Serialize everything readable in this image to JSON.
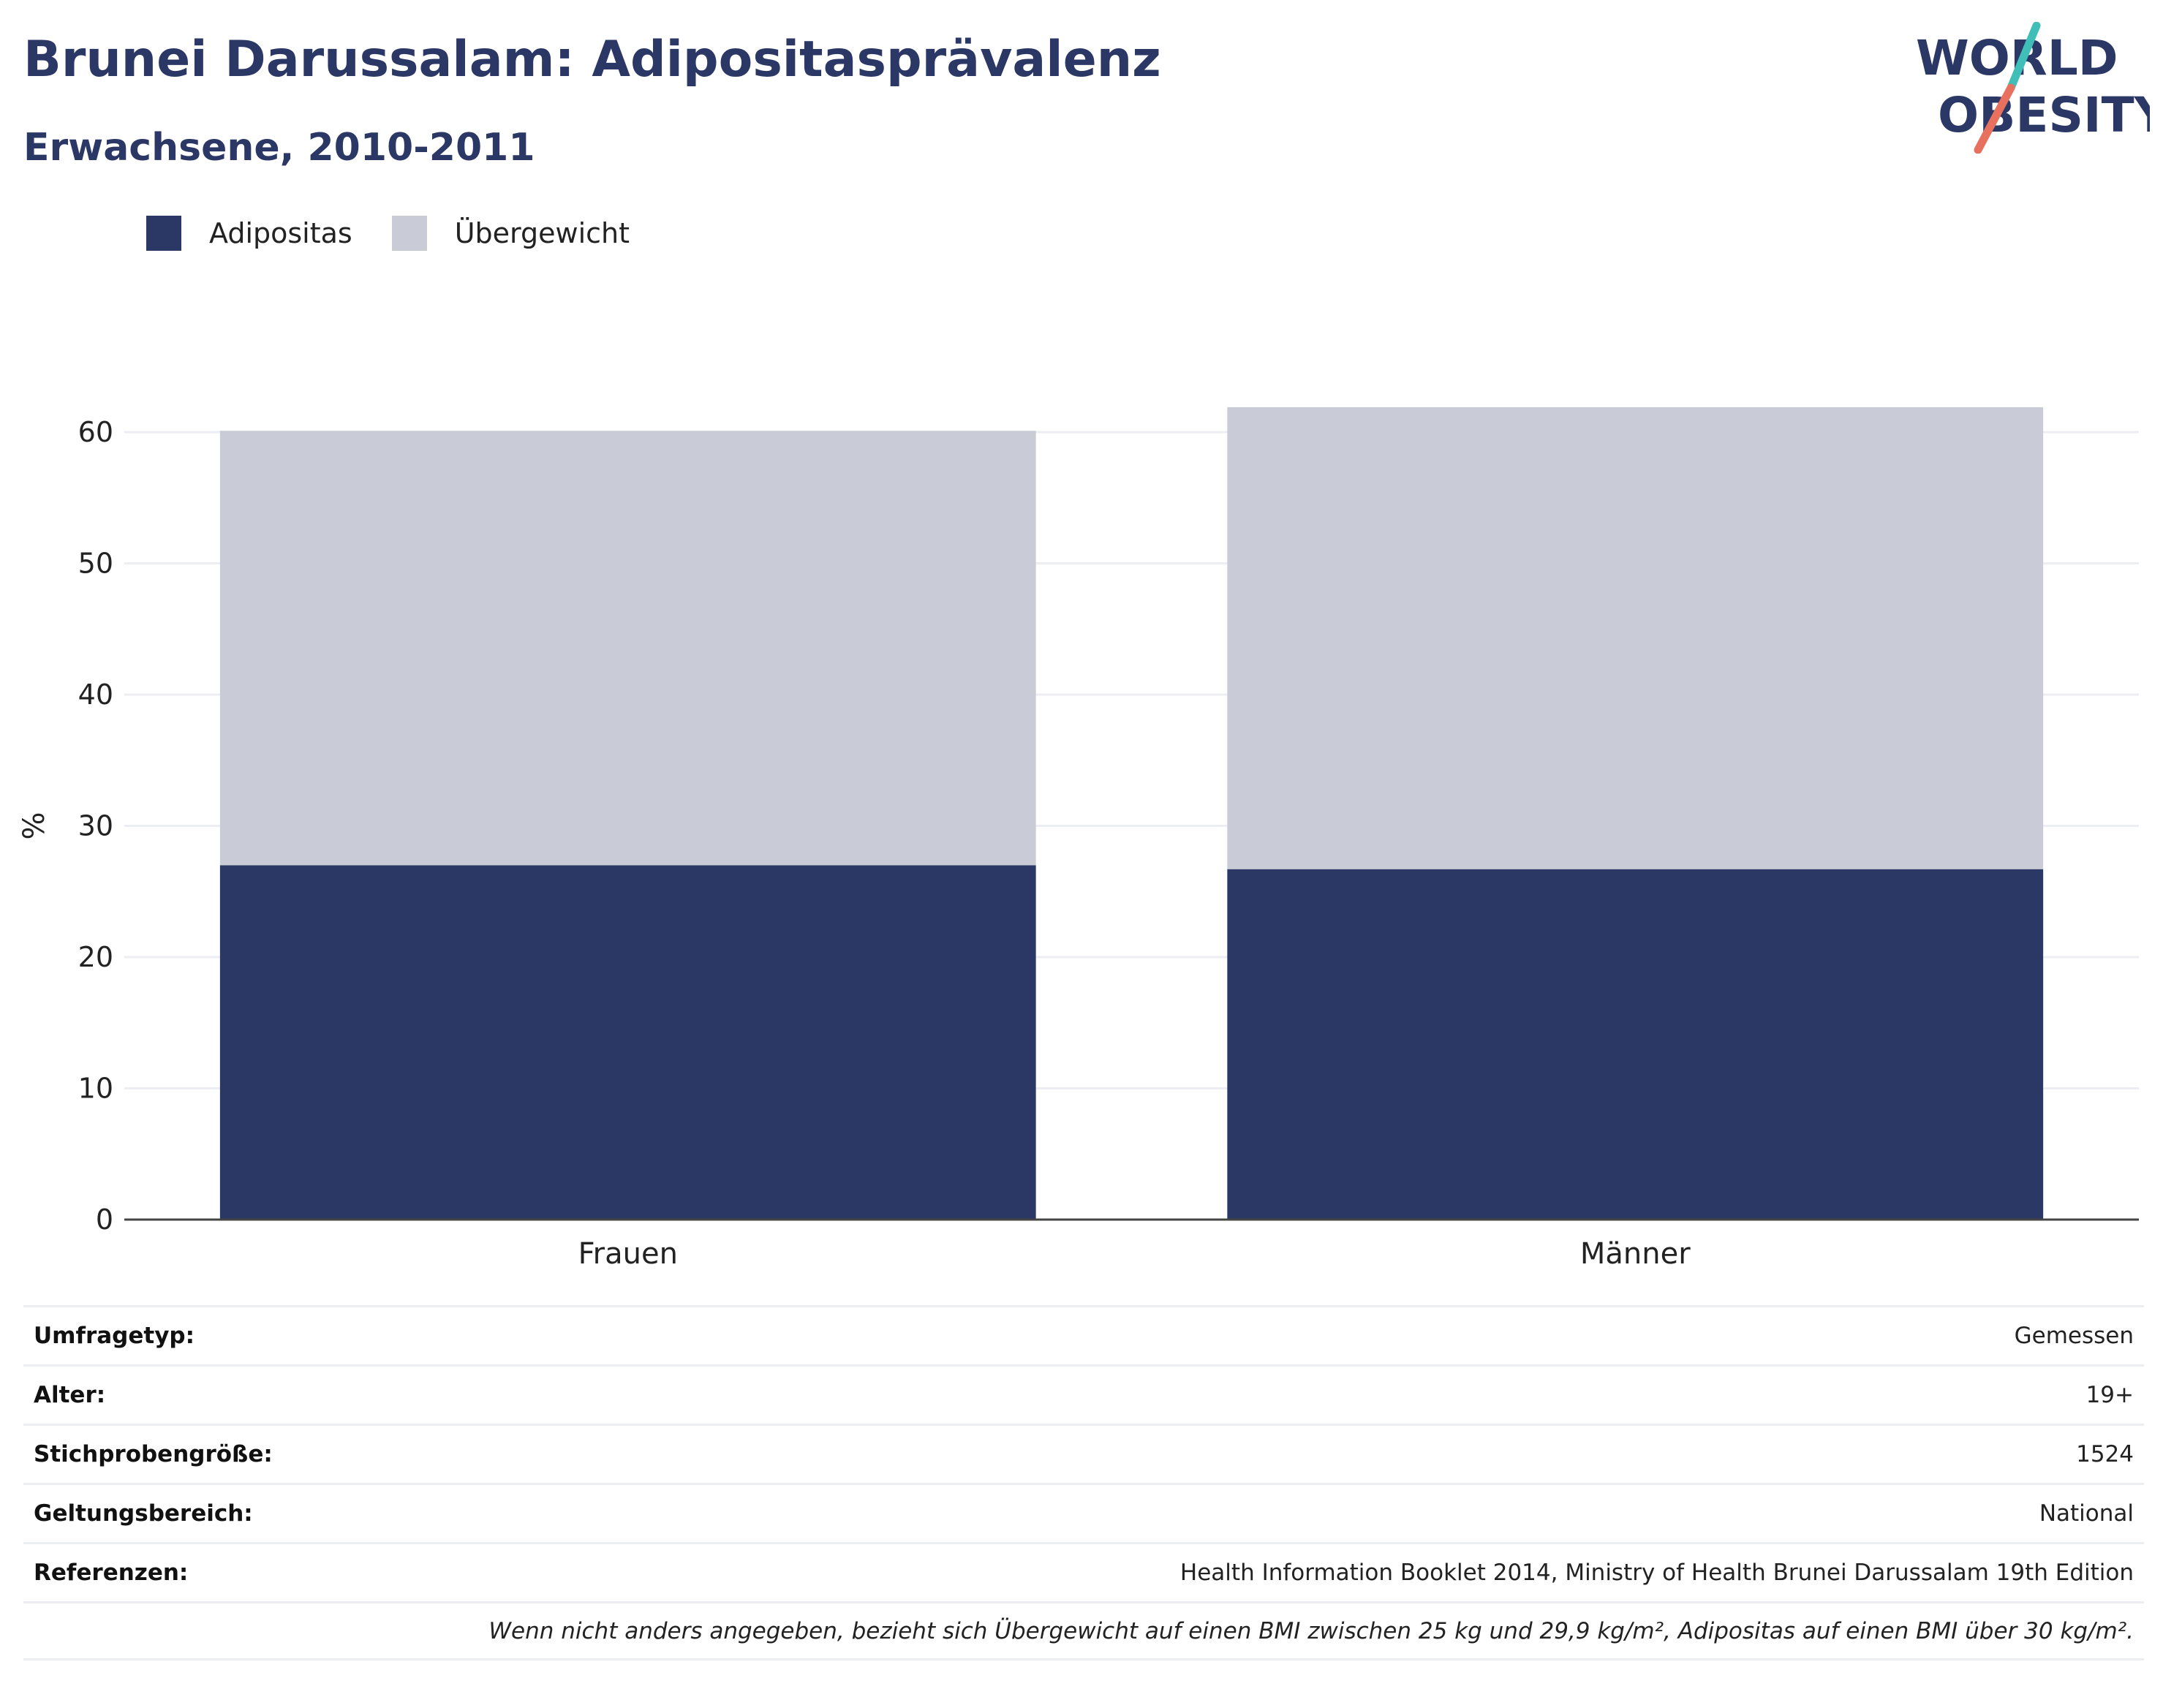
{
  "header": {
    "title": "Brunei Darussalam: Adipositasprävalenz",
    "subtitle": "Erwachsene, 2010-2011"
  },
  "logo": {
    "line1": "WORLD",
    "line2": "OBESITY"
  },
  "colors": {
    "obesity": "#2b3765",
    "overweight": "#c9cbd6",
    "logo_teal": "#3fbfb8",
    "logo_coral": "#e8705f"
  },
  "legend": [
    {
      "label": "Adipositas",
      "color": "#2b3765"
    },
    {
      "label": "Übergewicht",
      "color": "#c9cbd6"
    }
  ],
  "chart_data": {
    "type": "bar",
    "stacked": true,
    "categories": [
      "Frauen",
      "Männer"
    ],
    "series": [
      {
        "name": "Adipositas",
        "values": [
          27.0,
          26.7
        ]
      },
      {
        "name": "Übergewicht",
        "values": [
          33.1,
          35.2
        ]
      }
    ],
    "ylabel": "%",
    "ylim": [
      0,
      62
    ],
    "yticks": [
      0,
      10,
      20,
      30,
      40,
      50,
      60
    ],
    "grid": true,
    "legend_position": "top-left"
  },
  "meta": {
    "rows": [
      {
        "label": "Umfragetyp:",
        "value": "Gemessen"
      },
      {
        "label": "Alter:",
        "value": "19+"
      },
      {
        "label": "Stichprobengröße:",
        "value": "1524"
      },
      {
        "label": "Geltungsbereich:",
        "value": "National"
      },
      {
        "label": "Referenzen:",
        "value": "Health Information Booklet 2014, Ministry of Health Brunei Darussalam 19th Edition"
      }
    ],
    "note": "Wenn nicht anders angegeben, bezieht sich Übergewicht auf einen BMI zwischen 25 kg und 29,9 kg/m², Adipositas auf einen BMI über 30 kg/m²."
  }
}
